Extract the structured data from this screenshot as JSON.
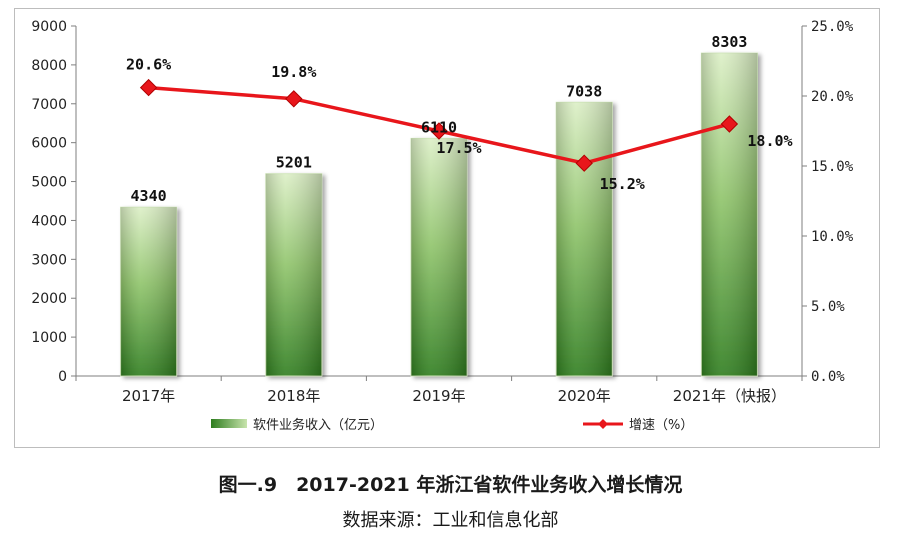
{
  "chart_data": {
    "type": "bar",
    "categories": [
      "2017年",
      "2018年",
      "2019年",
      "2020年",
      "2021年（快报）"
    ],
    "series": [
      {
        "name": "软件业务收入（亿元）",
        "type": "bar",
        "axis": "left",
        "values": [
          4340,
          5201,
          6110,
          7038,
          8303
        ],
        "labels": [
          "4340",
          "5201",
          "6110",
          "7038",
          "8303"
        ]
      },
      {
        "name": "增速（%）",
        "type": "line",
        "axis": "right",
        "values": [
          20.6,
          19.8,
          17.5,
          15.2,
          18.0
        ],
        "labels": [
          "20.6%",
          "19.8%",
          "17.5%",
          "15.2%",
          "18.0%"
        ]
      }
    ],
    "y_left": {
      "min": 0,
      "max": 9000,
      "ticks": [
        "0",
        "1000",
        "2000",
        "3000",
        "4000",
        "5000",
        "6000",
        "7000",
        "8000",
        "9000"
      ]
    },
    "y_right": {
      "min": 0,
      "max": 25,
      "ticks": [
        "0.0%",
        "5.0%",
        "10.0%",
        "15.0%",
        "20.0%",
        "25.0%"
      ]
    },
    "legend_position": "bottom",
    "grid": false,
    "colors": {
      "bar_dark": "#2e7d1e",
      "bar_light": "#dcefc6",
      "line": "#e8161b",
      "axis": "#7f7f7f"
    }
  },
  "figure": {
    "title": "图一.9　2017-2021 年浙江省软件业务收入增长情况",
    "source": "数据来源：工业和信息化部"
  }
}
